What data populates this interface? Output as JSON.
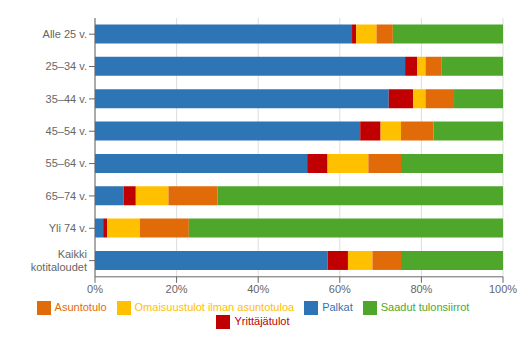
{
  "chart_data": {
    "type": "bar",
    "orientation": "horizontal",
    "stacked": true,
    "categories": [
      "Alle 25 v.",
      "25–34 v.",
      "35–44 v.",
      "45–54 v.",
      "55–64 v.",
      "65–74 v.",
      "Yli 74 v.",
      "Kaikki\nkotitaloudet"
    ],
    "series": [
      {
        "name": "Palkat",
        "color": "#2E75B6",
        "values": [
          63,
          76,
          72,
          65,
          52,
          7,
          2,
          57
        ]
      },
      {
        "name": "Yrittäjätulot",
        "color": "#C00000",
        "values": [
          1,
          3,
          6,
          5,
          5,
          3,
          1,
          5
        ]
      },
      {
        "name": "Omaisuustulot ilman asuntotuloa",
        "color": "#FFC000",
        "values": [
          5,
          2,
          3,
          5,
          10,
          8,
          8,
          6
        ]
      },
      {
        "name": "Asuntotulo",
        "color": "#E26B09",
        "values": [
          4,
          4,
          7,
          8,
          8,
          12,
          12,
          7
        ]
      },
      {
        "name": "Saadut tulonsiirrot",
        "color": "#4EA72A",
        "values": [
          27,
          15,
          12,
          17,
          25,
          70,
          77,
          25
        ]
      }
    ],
    "xlim": [
      0,
      100
    ],
    "xticks": [
      {
        "value": 0,
        "label": "0%"
      },
      {
        "value": 20,
        "label": "20%"
      },
      {
        "value": 40,
        "label": "40%"
      },
      {
        "value": 60,
        "label": "60%"
      },
      {
        "value": 80,
        "label": "80%"
      },
      {
        "value": 100,
        "label": "100%"
      }
    ],
    "grid": true,
    "legend": "bottom"
  }
}
